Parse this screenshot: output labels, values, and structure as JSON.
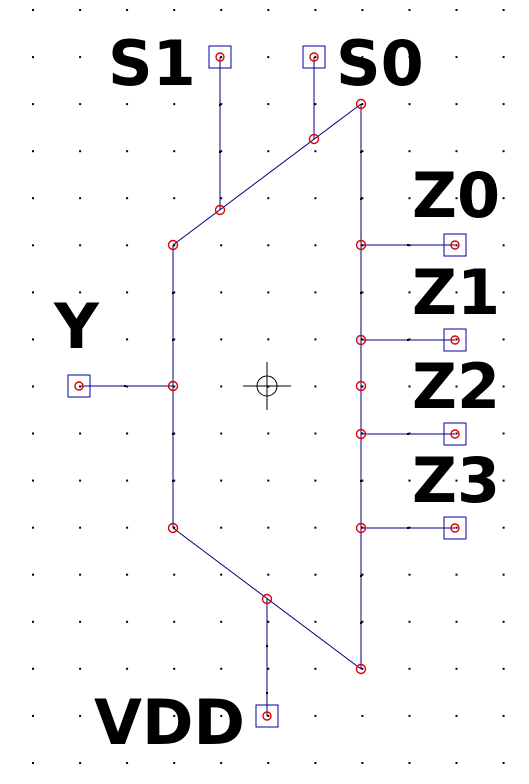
{
  "symbol": {
    "pins": [
      {
        "id": "s1",
        "label": "S1"
      },
      {
        "id": "s0",
        "label": "S0"
      },
      {
        "id": "y",
        "label": "Y"
      },
      {
        "id": "vdd",
        "label": "VDD"
      },
      {
        "id": "z0",
        "label": "Z0"
      },
      {
        "id": "z1",
        "label": "Z1"
      },
      {
        "id": "z2",
        "label": "Z2"
      },
      {
        "id": "z3",
        "label": "Z3"
      }
    ]
  },
  "colors": {
    "wire": "#000080",
    "handle": "#e00000",
    "pin_box": "#0000a0",
    "grid_dot": "#000000",
    "label": "#000000",
    "background": "#ffffff"
  },
  "icons": {
    "origin_marker": "crosshair-circle-icon",
    "pin_marker": "square-pin-icon",
    "vertex_handle": "red-circle-handle-icon"
  }
}
